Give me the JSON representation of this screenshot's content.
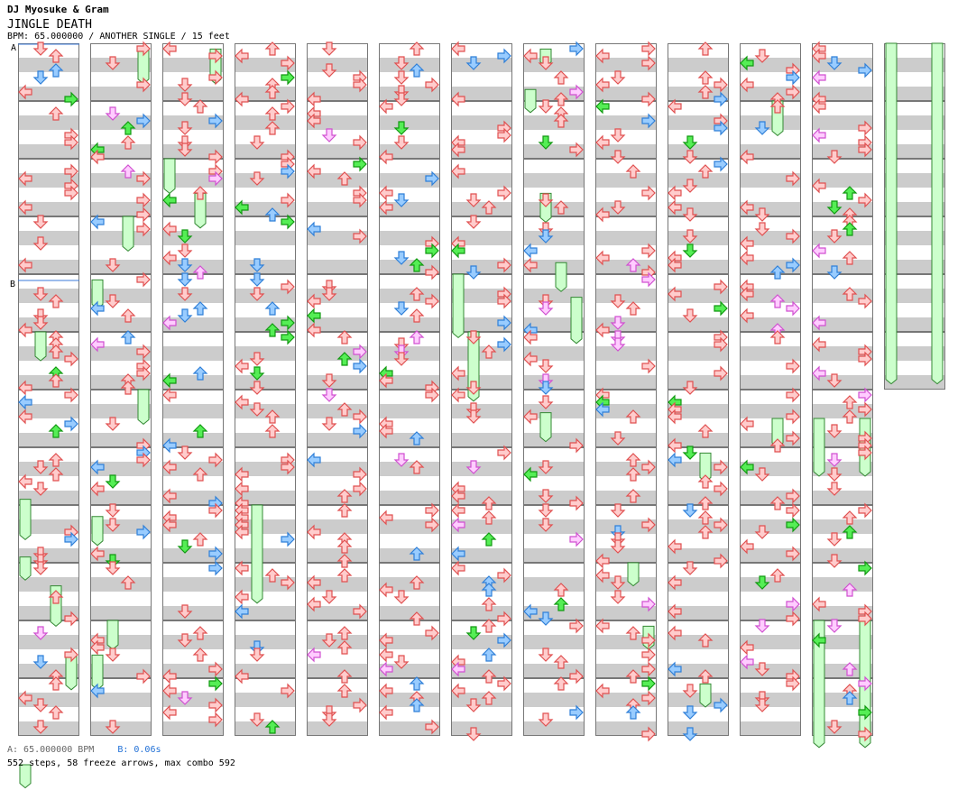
{
  "header": {
    "artist": "DJ Myosuke & Gram",
    "title": "JINGLE DEATH",
    "meta": "BPM: 65.000000 / ANOTHER SINGLE / 15 feet"
  },
  "markers": {
    "a": "A",
    "b": "B"
  },
  "footer": {
    "bpm_a": "A: 65.000000 BPM",
    "bpm_b": "B: 0.06s",
    "summary": "552 steps, 58 freeze arrows, max combo 592"
  },
  "chart_data": {
    "type": "step-chart",
    "mode": "ANOTHER SINGLE",
    "bpm": 65.0,
    "difficulty_feet": 15,
    "steps": 552,
    "freeze_arrows": 58,
    "max_combo": 592,
    "columns": 13,
    "measures_per_column": 12,
    "lanes": [
      "left",
      "down",
      "up",
      "right"
    ],
    "colors": {
      "bar_gray": "#cccccc",
      "red_fill": "#ffcccc",
      "red_stroke": "#e05050",
      "blue_fill": "#99ccff",
      "blue_stroke": "#2f7fd8",
      "pink_fill": "#ffccff",
      "pink_stroke": "#d050d0",
      "green_fill": "#55ee55",
      "green_stroke": "#119911",
      "freeze_fill": "#ccffcc",
      "freeze_stroke": "#338833",
      "line_blue": "#3a7ad8"
    }
  }
}
